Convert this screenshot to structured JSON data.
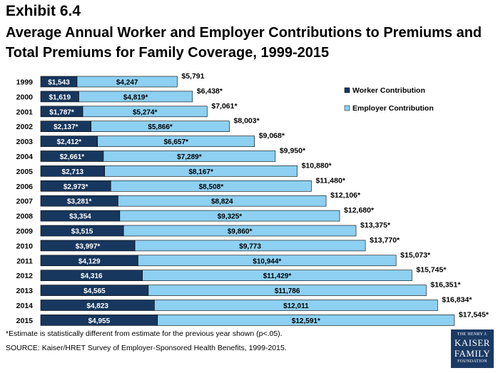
{
  "exhibit_label": "Exhibit 6.4",
  "title": "Average Annual Worker and Employer Contributions to Premiums and Total Premiums for Family Coverage, 1999-2015",
  "footnote": "*Estimate is statistically different from estimate for the previous year shown (p<.05).",
  "source": "SOURCE:  Kaiser/HRET Survey of Employer-Sponsored Health Benefits, 1999-2015.",
  "logo": {
    "line1": "THE HENRY J.",
    "line2": "KAISER",
    "line3": "FAMILY",
    "line4": "FOUNDATION"
  },
  "colors": {
    "worker": "#17375e",
    "employer": "#8dd0f2",
    "bar_border": "#000000"
  },
  "chart_data": {
    "type": "bar",
    "orientation": "horizontal",
    "stacked": true,
    "legend_position": "right",
    "categories": [
      "1999",
      "2000",
      "2001",
      "2002",
      "2003",
      "2004",
      "2005",
      "2006",
      "2007",
      "2008",
      "2009",
      "2010",
      "2011",
      "2012",
      "2013",
      "2014",
      "2015"
    ],
    "series": [
      {
        "name": "Worker Contribution",
        "values": [
          1543,
          1619,
          1787,
          2137,
          2412,
          2661,
          2713,
          2973,
          3281,
          3354,
          3515,
          3997,
          4129,
          4316,
          4565,
          4823,
          4955
        ],
        "labels": [
          "$1,543",
          "$1,619",
          "$1,787*",
          "$2,137*",
          "$2,412*",
          "$2,661*",
          "$2,713",
          "$2,973*",
          "$3,281*",
          "$3,354",
          "$3,515",
          "$3,997*",
          "$4,129",
          "$4,316",
          "$4,565",
          "$4,823",
          "$4,955"
        ]
      },
      {
        "name": "Employer Contribution",
        "values": [
          4247,
          4819,
          5274,
          5866,
          6657,
          7289,
          8167,
          8508,
          8824,
          9325,
          9860,
          9773,
          10944,
          11429,
          11786,
          12011,
          12591
        ],
        "labels": [
          "$4,247",
          "$4,819*",
          "$5,274*",
          "$5,866*",
          "$6,657*",
          "$7,289*",
          "$8,167*",
          "$8,508*",
          "$8,824",
          "$9,325*",
          "$9,860*",
          "$9,773",
          "$10,944*",
          "$11,429*",
          "$11,786",
          "$12,011",
          "$12,591*"
        ]
      }
    ],
    "totals": [
      5791,
      6438,
      7061,
      8003,
      9068,
      9950,
      10880,
      11480,
      12106,
      12680,
      13375,
      13770,
      15073,
      15745,
      16351,
      16834,
      17545
    ],
    "total_labels": [
      "$5,791",
      "$6,438*",
      "$7,061*",
      "$8,003*",
      "$9,068*",
      "$9,950*",
      "$10,880*",
      "$11,480*",
      "$12,106*",
      "$12,680*",
      "$13,375*",
      "$13,770*",
      "$15,073*",
      "$15,745*",
      "$16,351*",
      "$16,834*",
      "$17,545*"
    ]
  }
}
